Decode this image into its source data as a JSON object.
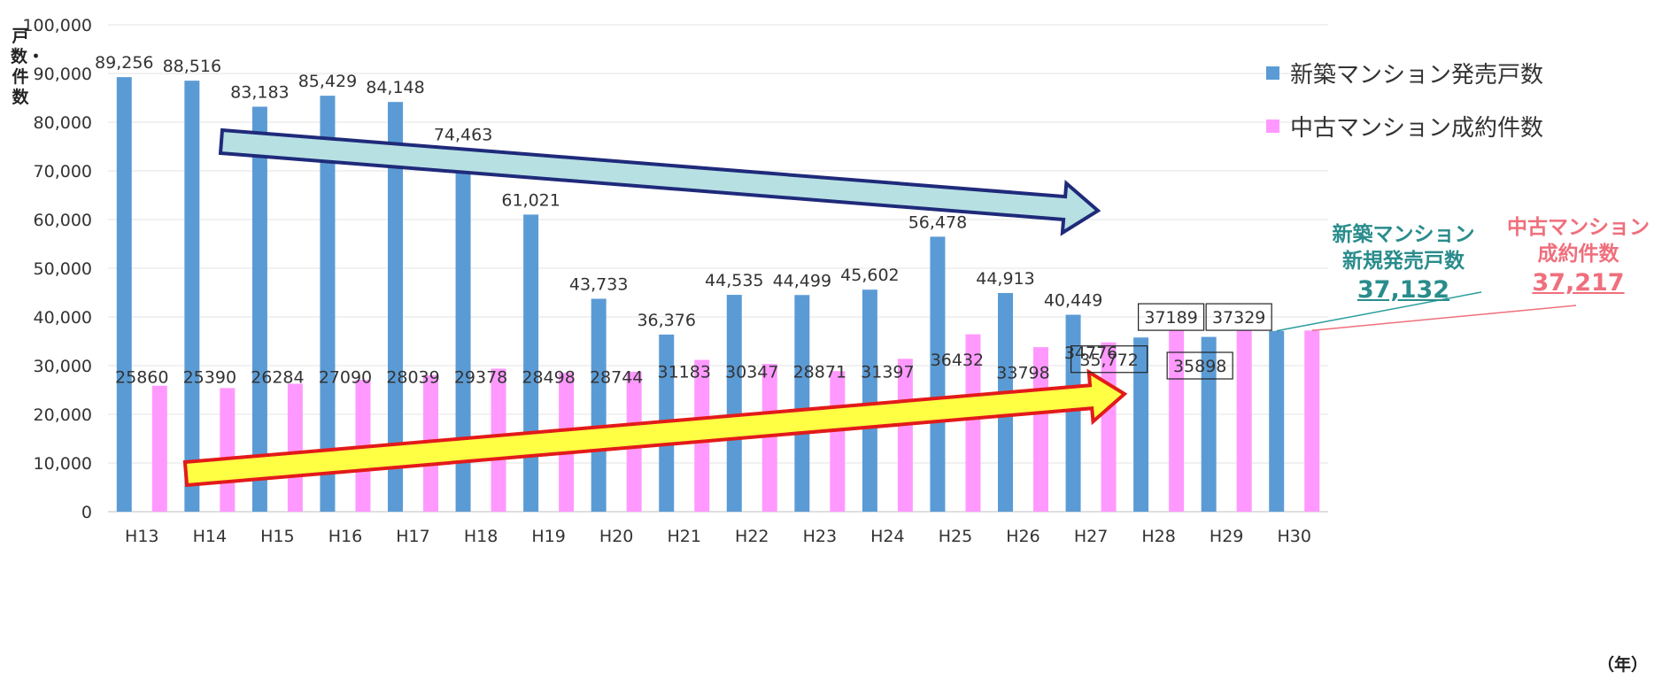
{
  "chart_data": {
    "type": "bar",
    "categories": [
      "H13",
      "H14",
      "H15",
      "H16",
      "H17",
      "H18",
      "H19",
      "H20",
      "H21",
      "H22",
      "H23",
      "H24",
      "H25",
      "H26",
      "H27",
      "H28",
      "H29",
      "H30"
    ],
    "series": [
      {
        "name": "新築マンション発売戸数",
        "color": "#5b9bd5",
        "values": [
          89256,
          88516,
          83183,
          85429,
          84148,
          74463,
          61021,
          43733,
          36376,
          44535,
          44499,
          45602,
          56478,
          44913,
          40449,
          35772,
          35898,
          37132
        ],
        "labels": [
          "89,256",
          "88,516",
          "83,183",
          "85,429",
          "84,148",
          "74,463",
          "61,021",
          "43,733",
          "36,376",
          "44,535",
          "44,499",
          "45,602",
          "56,478",
          "44,913",
          "40,449",
          "35,772",
          "35898",
          ""
        ]
      },
      {
        "name": "中古マンション成約件数",
        "color": "#ff99ff",
        "values": [
          25860,
          25390,
          26284,
          27090,
          28039,
          29378,
          28498,
          28744,
          31183,
          30347,
          28871,
          31397,
          36432,
          33798,
          34776,
          37189,
          37329,
          37217
        ],
        "labels": [
          "25860",
          "25390",
          "26284",
          "27090",
          "28039",
          "29378",
          "28498",
          "28744",
          "31183",
          "30347",
          "28871",
          "31397",
          "36432",
          "33798",
          "34776",
          "37189",
          "37329",
          ""
        ]
      }
    ],
    "ylim": [
      0,
      100000
    ],
    "yticks": [
      "0",
      "10,000",
      "20,000",
      "30,000",
      "40,000",
      "50,000",
      "60,000",
      "70,000",
      "80,000",
      "90,000",
      "100,000"
    ],
    "ylabel": "戸数・件数",
    "xunit": "（年）",
    "grid": true,
    "legend_position": "top-right"
  },
  "callouts": {
    "new": {
      "line1": "新築マンション",
      "line2": "新規発売戸数",
      "value": "37,132"
    },
    "used": {
      "line1": "中古マンション",
      "line2": "成約件数",
      "value": "37,217"
    }
  },
  "trend_arrows": [
    {
      "direction": "down",
      "fill": "#b7e0e3",
      "stroke": "#1f2a7a"
    },
    {
      "direction": "up",
      "fill": "#ffff44",
      "stroke": "#e31a1a"
    }
  ]
}
